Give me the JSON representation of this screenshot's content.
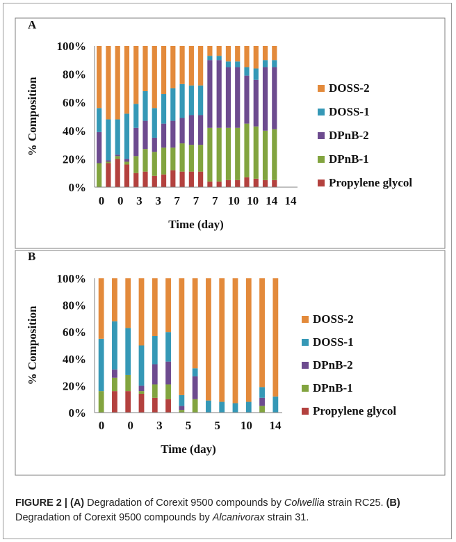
{
  "series_colors": {
    "Propylene glycol": "#b3413e",
    "DPnB-1": "#82a43f",
    "DPnB-2": "#6d4b8f",
    "DOSS-1": "#3598b6",
    "DOSS-2": "#e38a3b"
  },
  "chart_data": [
    {
      "panel_label": "A",
      "type": "bar",
      "stacked": true,
      "xlabel": "Time (day)",
      "ylabel": "% Composition",
      "ylim": [
        0,
        100
      ],
      "yticks": [
        "0%",
        "20%",
        "40%",
        "60%",
        "80%",
        "100%"
      ],
      "xtick_labels": [
        "0",
        "0",
        "3",
        "3",
        "7",
        "7",
        "7",
        "10",
        "10",
        "14",
        "14"
      ],
      "bar_count": 22,
      "legend_position": "right",
      "legend_order": [
        "DOSS-2",
        "DOSS-1",
        "DPnB-2",
        "DPnB-1",
        "Propylene glycol"
      ],
      "series": [
        {
          "name": "Propylene glycol",
          "values": [
            0,
            17,
            20,
            16,
            10,
            11,
            8,
            9,
            12,
            11,
            11,
            11,
            4,
            4,
            5,
            5,
            7,
            6,
            5,
            5,
            0,
            0
          ]
        },
        {
          "name": "DPnB-1",
          "values": [
            17,
            1,
            2,
            2,
            12,
            16,
            17,
            19,
            16,
            20,
            19,
            19,
            38,
            38,
            37,
            37,
            38,
            37,
            35,
            36,
            0,
            0
          ]
        },
        {
          "name": "DPnB-2",
          "values": [
            22,
            1,
            1,
            2,
            20,
            20,
            10,
            17,
            19,
            18,
            21,
            21,
            48,
            48,
            43,
            43,
            34,
            33,
            45,
            44,
            0,
            0
          ]
        },
        {
          "name": "DOSS-1",
          "values": [
            17,
            29,
            25,
            32,
            17,
            21,
            21,
            21,
            23,
            24,
            21,
            21,
            3,
            3,
            4,
            4,
            6,
            8,
            5,
            5,
            0,
            0
          ]
        },
        {
          "name": "DOSS-2",
          "values": [
            44,
            52,
            52,
            48,
            41,
            32,
            44,
            34,
            30,
            27,
            28,
            28,
            7,
            7,
            11,
            11,
            15,
            16,
            10,
            10,
            0,
            0
          ]
        }
      ]
    },
    {
      "panel_label": "B",
      "type": "bar",
      "stacked": true,
      "xlabel": "Time (day)",
      "ylabel": "% Composition",
      "ylim": [
        0,
        100
      ],
      "yticks": [
        "0%",
        "20%",
        "40%",
        "60%",
        "80%",
        "100%"
      ],
      "xtick_labels": [
        "0",
        "0",
        "3",
        "5",
        "5",
        "10",
        "14"
      ],
      "bar_count": 14,
      "legend_position": "right",
      "legend_order": [
        "DOSS-2",
        "DOSS-1",
        "DPnB-2",
        "DPnB-1",
        "Propylene glycol"
      ],
      "series": [
        {
          "name": "Propylene glycol",
          "values": [
            0,
            16,
            16,
            14,
            11,
            10,
            0,
            0,
            0,
            0,
            0,
            0,
            0,
            0
          ]
        },
        {
          "name": "DPnB-1",
          "values": [
            16,
            10,
            12,
            2,
            10,
            11,
            2,
            10,
            0,
            0,
            0,
            0,
            5,
            0
          ]
        },
        {
          "name": "DPnB-2",
          "values": [
            0,
            6,
            0,
            4,
            15,
            17,
            3,
            17,
            0,
            0,
            0,
            0,
            6,
            0
          ]
        },
        {
          "name": "DOSS-1",
          "values": [
            39,
            36,
            35,
            30,
            21,
            22,
            8,
            6,
            9,
            8,
            7,
            8,
            8,
            12
          ]
        },
        {
          "name": "DOSS-2",
          "values": [
            45,
            32,
            37,
            50,
            43,
            40,
            87,
            67,
            91,
            92,
            93,
            92,
            81,
            88
          ]
        }
      ]
    }
  ],
  "caption": {
    "figure_label": "FIGURE 2 | (A)",
    "part_a_text_1": " Degradation of Corexit 9500 compounds by ",
    "part_a_organism": "Colwellia",
    "part_a_text_2": " strain RC25. ",
    "part_b_label": "(B)",
    "part_b_text_1": " Degradation of Corexit 9500 compounds by ",
    "part_b_organism": "Alcanivorax",
    "part_b_text_2": " strain 31."
  }
}
